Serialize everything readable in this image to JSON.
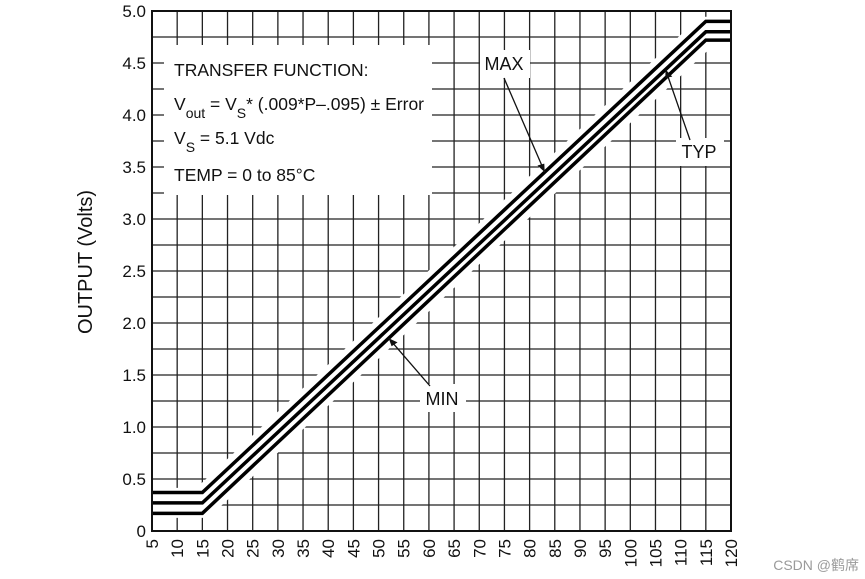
{
  "chart_data": {
    "type": "line",
    "ylabel": "OUTPUT (Volts)",
    "xlabel": "",
    "xlim": [
      5,
      120
    ],
    "ylim": [
      0,
      5.0
    ],
    "x_ticks": [
      "5",
      "10",
      "15",
      "20",
      "25",
      "30",
      "35",
      "40",
      "45",
      "50",
      "55",
      "60",
      "65",
      "70",
      "75",
      "80",
      "85",
      "90",
      "95",
      "100",
      "105",
      "110",
      "115",
      "120"
    ],
    "y_ticks": [
      "0",
      "0.5",
      "1.0",
      "1.5",
      "2.0",
      "2.5",
      "3.0",
      "3.5",
      "4.0",
      "4.5",
      "5.0"
    ],
    "grid": true,
    "series": [
      {
        "name": "MAX",
        "x": [
          5,
          15,
          115,
          120
        ],
        "y": [
          0.37,
          0.37,
          4.9,
          4.9
        ]
      },
      {
        "name": "TYP",
        "x": [
          5,
          15,
          115,
          120
        ],
        "y": [
          0.27,
          0.27,
          4.8,
          4.8
        ]
      },
      {
        "name": "MIN",
        "x": [
          5,
          15,
          115,
          120
        ],
        "y": [
          0.17,
          0.17,
          4.72,
          4.72
        ]
      }
    ],
    "annotations": {
      "box": {
        "line1": "TRANSFER FUNCTION:",
        "line2_prefix": "V",
        "line2_sub1": "out",
        "line2_mid": " = V",
        "line2_sub2": "S",
        "line2_suffix": "* (.009*P–.095) ± Error",
        "line3_prefix": "V",
        "line3_sub": "S",
        "line3_suffix": " = 5.1 Vdc",
        "line4": "TEMP = 0 to 85°C"
      },
      "labels": [
        {
          "text": "MAX",
          "target_series": "MAX",
          "at_x": 83
        },
        {
          "text": "TYP",
          "target_series": "TYP",
          "at_x": 107
        },
        {
          "text": "MIN",
          "target_series": "MIN",
          "at_x": 52
        }
      ]
    }
  },
  "watermark": "CSDN @鹤席"
}
